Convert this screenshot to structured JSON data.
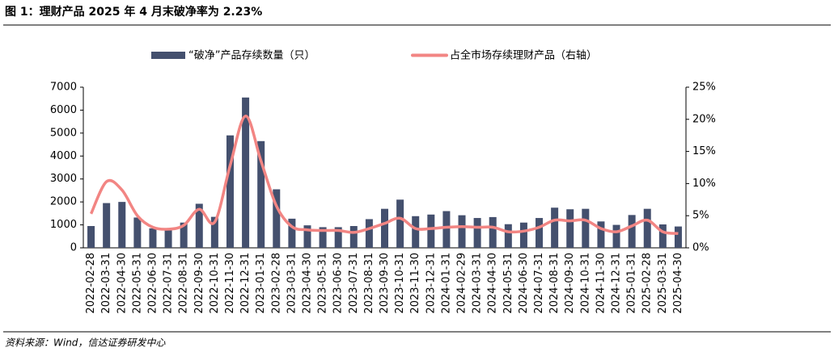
{
  "header": {
    "title": "图 1：理财产品 2025 年 4 月末破净率为 2.23%"
  },
  "chart_data": {
    "type": "bar-line",
    "categories": [
      "2022-02-28",
      "2022-03-31",
      "2022-04-30",
      "2022-05-31",
      "2022-06-30",
      "2022-07-31",
      "2022-08-31",
      "2022-09-30",
      "2022-10-31",
      "2022-11-30",
      "2022-12-31",
      "2023-01-31",
      "2023-02-28",
      "2023-03-31",
      "2023-04-30",
      "2023-05-31",
      "2023-06-30",
      "2023-07-31",
      "2023-08-31",
      "2023-09-30",
      "2023-10-31",
      "2023-11-30",
      "2023-12-31",
      "2024-01-31",
      "2024-02-29",
      "2024-03-31",
      "2024-04-30",
      "2024-05-31",
      "2024-06-30",
      "2024-07-31",
      "2024-08-31",
      "2024-09-30",
      "2024-10-31",
      "2024-11-30",
      "2024-12-31",
      "2025-01-31",
      "2025-02-28",
      "2025-03-31",
      "2025-04-30"
    ],
    "series": [
      {
        "name": "“破净”产品存续数量（只）",
        "type": "bar",
        "color": "#44506e",
        "values": [
          950,
          1950,
          2000,
          1320,
          850,
          800,
          1100,
          1920,
          1350,
          4900,
          6550,
          4650,
          2550,
          1270,
          980,
          900,
          900,
          950,
          1250,
          1700,
          2100,
          1380,
          1450,
          1600,
          1420,
          1300,
          1340,
          1030,
          1100,
          1300,
          1750,
          1680,
          1700,
          1150,
          1000,
          1430,
          1700,
          1020,
          930
        ]
      },
      {
        "name": "占全市场存续理财产品（右轴）",
        "type": "line",
        "axis": "y2",
        "color": "#f28583",
        "values": [
          5.3,
          10.3,
          9.0,
          5.0,
          3.2,
          2.9,
          3.5,
          6.0,
          4.0,
          12.8,
          20.5,
          13.5,
          6.5,
          3.3,
          2.8,
          2.7,
          2.7,
          2.4,
          3.0,
          3.8,
          4.6,
          3.0,
          3.0,
          3.2,
          3.3,
          3.2,
          3.2,
          2.5,
          2.6,
          3.2,
          4.3,
          4.2,
          4.3,
          3.0,
          2.5,
          3.4,
          4.3,
          2.5,
          2.23
        ]
      }
    ],
    "ylim": [
      0,
      7000
    ],
    "yticks": [
      0,
      1000,
      2000,
      3000,
      4000,
      5000,
      6000,
      7000
    ],
    "y2lim": [
      0,
      25
    ],
    "y2ticks": [
      {
        "value": 0,
        "label": "0%"
      },
      {
        "value": 5,
        "label": "5%"
      },
      {
        "value": 10,
        "label": "10%"
      },
      {
        "value": 15,
        "label": "15%"
      },
      {
        "value": 20,
        "label": "20%"
      },
      {
        "value": 25,
        "label": "25%"
      }
    ],
    "legend": "top"
  },
  "footer": {
    "source": "资料来源：Wind，信达证券研发中心"
  }
}
